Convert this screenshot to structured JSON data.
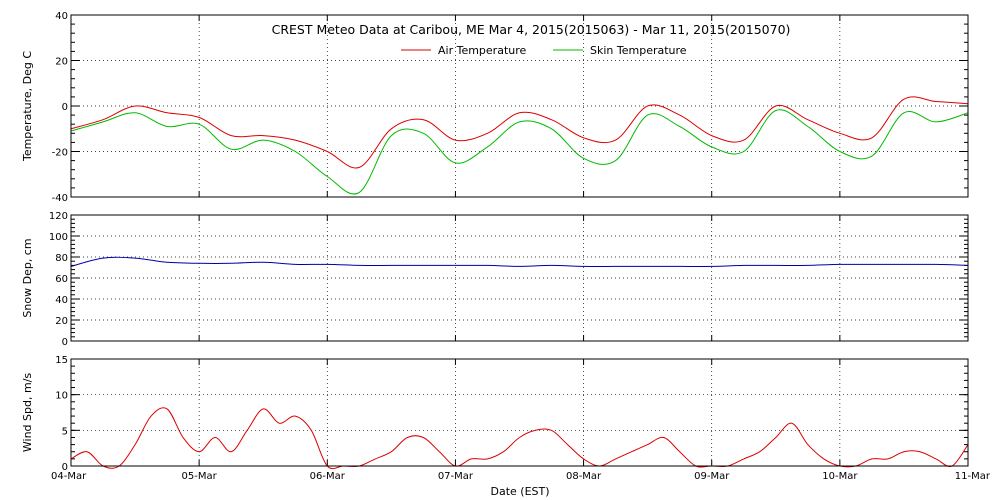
{
  "title": "CREST Meteo Data at Caribou, ME   Mar  4, 2015(2015063) - Mar 11, 2015(2015070)",
  "xlabel": "Date (EST)",
  "x_tick_labels": [
    "04-Mar",
    "05-Mar",
    "06-Mar",
    "07-Mar",
    "08-Mar",
    "09-Mar",
    "10-Mar",
    "11-Mar"
  ],
  "chart_data": [
    {
      "type": "line",
      "ylabel": "Temperature, Deg C",
      "ylim": [
        -40,
        40
      ],
      "yticks": [
        -40,
        -20,
        0,
        20,
        40
      ],
      "xlim": [
        "2015-03-04",
        "2015-03-11"
      ],
      "grid": true,
      "legend": "top-center",
      "x": [
        "2015-03-04 00:00",
        "2015-03-04 06:00",
        "2015-03-04 12:00",
        "2015-03-04 18:00",
        "2015-03-05 00:00",
        "2015-03-05 06:00",
        "2015-03-05 12:00",
        "2015-03-05 18:00",
        "2015-03-06 00:00",
        "2015-03-06 06:00",
        "2015-03-06 12:00",
        "2015-03-06 18:00",
        "2015-03-07 00:00",
        "2015-03-07 06:00",
        "2015-03-07 12:00",
        "2015-03-07 18:00",
        "2015-03-08 00:00",
        "2015-03-08 06:00",
        "2015-03-08 12:00",
        "2015-03-08 18:00",
        "2015-03-09 00:00",
        "2015-03-09 06:00",
        "2015-03-09 12:00",
        "2015-03-09 18:00",
        "2015-03-10 00:00",
        "2015-03-10 06:00",
        "2015-03-10 12:00",
        "2015-03-10 18:00",
        "2015-03-11 00:00"
      ],
      "series": [
        {
          "name": "Air Temperature",
          "color": "#dd0000",
          "values": [
            -10,
            -6,
            0,
            -3,
            -5,
            -13,
            -13,
            -15,
            -20,
            -27,
            -10,
            -6,
            -15,
            -12,
            -3,
            -6,
            -14,
            -15,
            0,
            -4,
            -13,
            -15,
            0,
            -6,
            -12,
            -14,
            3,
            2,
            1
          ]
        },
        {
          "name": "Skin Temperature",
          "color": "#00bb00",
          "values": [
            -11,
            -7,
            -3,
            -9,
            -8,
            -19,
            -15,
            -20,
            -31,
            -38,
            -13,
            -12,
            -25,
            -18,
            -7,
            -10,
            -23,
            -24,
            -4,
            -9,
            -18,
            -20,
            -2,
            -9,
            -20,
            -22,
            -3,
            -7,
            -3
          ]
        }
      ]
    },
    {
      "type": "line",
      "ylabel": "Snow Dep, cm",
      "ylim": [
        0,
        120
      ],
      "yticks": [
        0,
        20,
        40,
        60,
        80,
        100,
        120
      ],
      "xlim": [
        "2015-03-04",
        "2015-03-11"
      ],
      "grid": true,
      "x": [
        "2015-03-04 00:00",
        "2015-03-04 06:00",
        "2015-03-04 12:00",
        "2015-03-04 18:00",
        "2015-03-05 00:00",
        "2015-03-05 06:00",
        "2015-03-05 12:00",
        "2015-03-05 18:00",
        "2015-03-06 00:00",
        "2015-03-06 06:00",
        "2015-03-06 12:00",
        "2015-03-06 18:00",
        "2015-03-07 00:00",
        "2015-03-07 06:00",
        "2015-03-07 12:00",
        "2015-03-07 18:00",
        "2015-03-08 00:00",
        "2015-03-08 06:00",
        "2015-03-08 12:00",
        "2015-03-08 18:00",
        "2015-03-09 00:00",
        "2015-03-09 06:00",
        "2015-03-09 12:00",
        "2015-03-09 18:00",
        "2015-03-10 00:00",
        "2015-03-10 06:00",
        "2015-03-10 12:00",
        "2015-03-10 18:00",
        "2015-03-11 00:00"
      ],
      "series": [
        {
          "color": "#0000aa",
          "values": [
            71,
            79,
            79,
            75,
            74,
            74,
            75,
            73,
            73,
            72,
            72,
            72,
            72,
            72,
            71,
            72,
            71,
            71,
            71,
            71,
            71,
            72,
            72,
            72,
            73,
            73,
            73,
            73,
            72
          ]
        }
      ]
    },
    {
      "type": "line",
      "ylabel": "Wind Spd, m/s",
      "ylim": [
        0,
        15
      ],
      "yticks": [
        0,
        5,
        10,
        15
      ],
      "xlim": [
        "2015-03-04",
        "2015-03-11"
      ],
      "grid": true,
      "x": [
        "2015-03-04 00:00",
        "2015-03-04 03:00",
        "2015-03-04 06:00",
        "2015-03-04 09:00",
        "2015-03-04 12:00",
        "2015-03-04 15:00",
        "2015-03-04 18:00",
        "2015-03-04 21:00",
        "2015-03-05 00:00",
        "2015-03-05 03:00",
        "2015-03-05 06:00",
        "2015-03-05 09:00",
        "2015-03-05 12:00",
        "2015-03-05 15:00",
        "2015-03-05 18:00",
        "2015-03-05 21:00",
        "2015-03-06 00:00",
        "2015-03-06 03:00",
        "2015-03-06 06:00",
        "2015-03-06 09:00",
        "2015-03-06 12:00",
        "2015-03-06 15:00",
        "2015-03-06 18:00",
        "2015-03-06 21:00",
        "2015-03-07 00:00",
        "2015-03-07 03:00",
        "2015-03-07 06:00",
        "2015-03-07 09:00",
        "2015-03-07 12:00",
        "2015-03-07 15:00",
        "2015-03-07 18:00",
        "2015-03-07 21:00",
        "2015-03-08 00:00",
        "2015-03-08 03:00",
        "2015-03-08 06:00",
        "2015-03-08 09:00",
        "2015-03-08 12:00",
        "2015-03-08 15:00",
        "2015-03-08 18:00",
        "2015-03-08 21:00",
        "2015-03-09 00:00",
        "2015-03-09 03:00",
        "2015-03-09 06:00",
        "2015-03-09 09:00",
        "2015-03-09 12:00",
        "2015-03-09 15:00",
        "2015-03-09 18:00",
        "2015-03-09 21:00",
        "2015-03-10 00:00",
        "2015-03-10 03:00",
        "2015-03-10 06:00",
        "2015-03-10 09:00",
        "2015-03-10 12:00",
        "2015-03-10 15:00",
        "2015-03-10 18:00",
        "2015-03-10 21:00",
        "2015-03-11 00:00"
      ],
      "series": [
        {
          "color": "#dd0000",
          "values": [
            1,
            2,
            0,
            0,
            3,
            7,
            8,
            4,
            2,
            4,
            2,
            5,
            8,
            6,
            7,
            5,
            0,
            0,
            0,
            1,
            2,
            4,
            4,
            2,
            0,
            1,
            1,
            2,
            4,
            5,
            5,
            3,
            1,
            0,
            1,
            2,
            3,
            4,
            2,
            0,
            0,
            0,
            1,
            2,
            4,
            6,
            3,
            1,
            0,
            0,
            1,
            1,
            2,
            2,
            1,
            0,
            3
          ]
        }
      ]
    }
  ]
}
